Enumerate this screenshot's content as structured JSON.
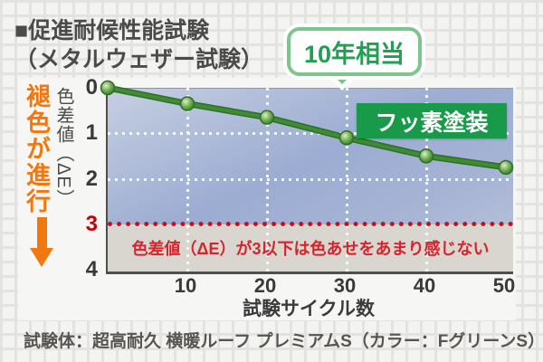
{
  "title": {
    "line1": "■促進耐候性能試験",
    "line2": "（メタルウェザー試験）"
  },
  "callout": {
    "label": "10年相当"
  },
  "legend": {
    "label": "フッ素塗装"
  },
  "y_axis": {
    "title": "色差値（ΔE）",
    "ticks": [
      "0",
      "1",
      "2",
      "3",
      "4"
    ],
    "red_tick": "3",
    "side_note": "褪色が進行"
  },
  "x_axis": {
    "title": "試験サイクル数",
    "ticks": [
      "10",
      "20",
      "30",
      "40",
      "50"
    ]
  },
  "threshold": {
    "value": 3,
    "note": "色差値（ΔE）が3以下は色あせをあまり感じない"
  },
  "caption": "試験体：超高耐久 横暖ルーフ プレミアムS（カラー：FグリーンS）",
  "chart_data": {
    "type": "line",
    "title": "促進耐候性能試験（メタルウェザー試験）",
    "xlabel": "試験サイクル数",
    "ylabel": "色差値（ΔE）",
    "x": [
      0,
      10,
      20,
      30,
      40,
      50
    ],
    "series": [
      {
        "name": "フッ素塗装",
        "values": [
          0,
          0.35,
          0.65,
          1.1,
          1.5,
          1.75
        ]
      }
    ],
    "xlim": [
      0,
      50
    ],
    "ylim": [
      4,
      0
    ],
    "y_axis_inverted": true,
    "grid": "white-dotted",
    "threshold_line": {
      "y": 3,
      "style": "red-dotted",
      "label": "色差値（ΔE）が3以下は色あせをあまり感じない"
    },
    "annotation": {
      "x": 30,
      "label": "10年相当"
    },
    "legend_position": "top-right"
  },
  "colors": {
    "line_green": "#3f8c34",
    "line_edge_green": "#2e6f28",
    "legend_green": "#189a4a",
    "callout_border_green": "#7cc58c",
    "callout_text_green": "#21a052",
    "orange": "#f3770f",
    "red": "#c6121f",
    "red_text": "#d4242c",
    "plot_blue_light": "#c6cfe2",
    "plot_blue_dark": "#9cacd2",
    "safe_strip_gray": "#d9d5cf",
    "text_dark": "#4b4b49"
  }
}
